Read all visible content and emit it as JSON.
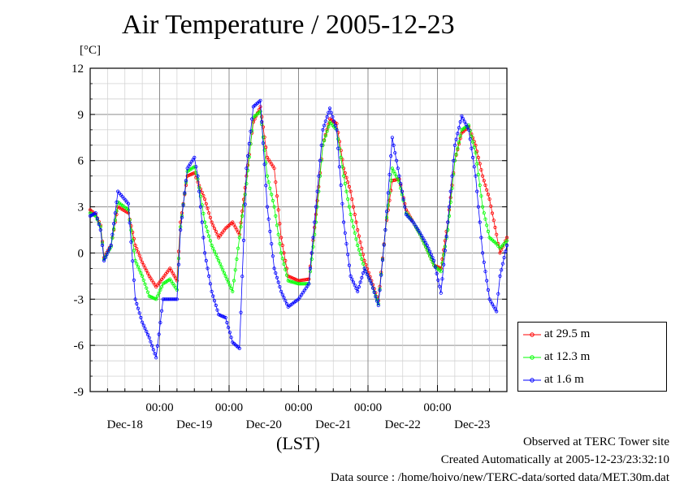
{
  "title": "Air Temperature / 2005-12-23",
  "unit_label": "[°C]",
  "time_zone_label": "(LST)",
  "footer": {
    "site": "Observed at TERC Tower site",
    "created": "Created Automatically at 2005-12-23/23:32:10",
    "source": "Data source : /home/hoivo/new/TERC-data/sorted  data/MET.30m.dat"
  },
  "chart_data": {
    "type": "line",
    "title": "Air Temperature / 2005-12-23",
    "ylabel": "[°C]",
    "xlabel": "(LST)",
    "ylim": [
      -9,
      12
    ],
    "xlim": [
      0,
      6
    ],
    "yticks": [
      12,
      9,
      6,
      3,
      0,
      -3,
      -6,
      -9
    ],
    "x_day_labels": [
      "Dec-18",
      "Dec-19",
      "Dec-20",
      "Dec-21",
      "Dec-22",
      "Dec-23"
    ],
    "x_time_labels": [
      "00:00",
      "00:00",
      "00:00",
      "00:00",
      "00:00"
    ],
    "x_time_positions": [
      1,
      2,
      3,
      4,
      5
    ],
    "grid": true,
    "legend_position": "right",
    "series": [
      {
        "name": "at 29.5 m",
        "color": "#ff0000",
        "x": [
          0,
          0.08,
          0.15,
          0.2,
          0.3,
          0.4,
          0.55,
          0.65,
          0.75,
          0.85,
          0.95,
          1.05,
          1.15,
          1.25,
          1.3,
          1.4,
          1.5,
          1.55,
          1.65,
          1.75,
          1.85,
          1.95,
          2.05,
          2.15,
          2.25,
          2.35,
          2.45,
          2.55,
          2.65,
          2.75,
          2.85,
          3.0,
          3.15,
          3.25,
          3.35,
          3.45,
          3.55,
          3.65,
          3.75,
          3.85,
          3.95,
          4.05,
          4.15,
          4.25,
          4.35,
          4.45,
          4.55,
          4.65,
          4.75,
          4.85,
          4.95,
          5.05,
          5.15,
          5.25,
          5.35,
          5.45,
          5.55,
          5.65,
          5.75,
          5.85,
          5.9,
          6.0
        ],
        "y": [
          2.8,
          2.5,
          1.8,
          -0.3,
          0.5,
          3.0,
          2.6,
          0.5,
          -0.6,
          -1.5,
          -2.2,
          -1.6,
          -1.0,
          -1.8,
          2.0,
          5.0,
          5.2,
          4.6,
          3.5,
          2.0,
          1.0,
          1.6,
          2.0,
          1.2,
          5.0,
          8.5,
          9.5,
          6.2,
          5.5,
          1.0,
          -1.5,
          -1.8,
          -1.7,
          2.5,
          7.0,
          8.7,
          8.4,
          5.5,
          4.0,
          1.5,
          -0.5,
          -1.8,
          -3.1,
          1.5,
          4.7,
          4.8,
          2.8,
          2.0,
          1.2,
          0.2,
          -0.8,
          -1.0,
          2.0,
          6.0,
          7.8,
          8.2,
          7.0,
          5.0,
          3.5,
          1.2,
          0.0,
          1.0
        ]
      },
      {
        "name": "at 12.3 m",
        "color": "#00ff00",
        "x": [
          0,
          0.08,
          0.15,
          0.2,
          0.3,
          0.4,
          0.55,
          0.65,
          0.75,
          0.85,
          0.95,
          1.05,
          1.15,
          1.25,
          1.3,
          1.4,
          1.5,
          1.55,
          1.65,
          1.75,
          1.85,
          1.95,
          2.05,
          2.15,
          2.25,
          2.35,
          2.45,
          2.55,
          2.65,
          2.75,
          2.85,
          3.0,
          3.15,
          3.25,
          3.35,
          3.45,
          3.55,
          3.65,
          3.75,
          3.85,
          3.95,
          4.05,
          4.15,
          4.25,
          4.35,
          4.45,
          4.55,
          4.65,
          4.75,
          4.85,
          4.95,
          5.05,
          5.15,
          5.25,
          5.35,
          5.45,
          5.55,
          5.65,
          5.75,
          5.85,
          5.9,
          6.0
        ],
        "y": [
          2.6,
          2.4,
          1.7,
          -0.4,
          0.4,
          3.3,
          2.8,
          -0.5,
          -1.5,
          -2.8,
          -3.0,
          -2.0,
          -1.7,
          -2.4,
          1.7,
          5.3,
          5.6,
          4.8,
          2.0,
          0.5,
          -0.5,
          -1.5,
          -2.5,
          1.0,
          4.5,
          8.8,
          9.2,
          5.0,
          3.0,
          0.0,
          -1.8,
          -2.0,
          -2.0,
          2.0,
          7.0,
          8.5,
          8.0,
          5.0,
          2.5,
          0.5,
          -1.0,
          -2.0,
          -3.3,
          1.5,
          5.5,
          4.6,
          2.6,
          2.0,
          1.2,
          0.2,
          -0.8,
          -1.2,
          1.5,
          6.0,
          8.0,
          8.3,
          6.5,
          3.0,
          1.0,
          0.6,
          0.3,
          0.8
        ]
      },
      {
        "name": "at 1.6 m",
        "color": "#0000ff",
        "x": [
          0,
          0.08,
          0.15,
          0.2,
          0.3,
          0.4,
          0.55,
          0.65,
          0.75,
          0.85,
          0.95,
          1.05,
          1.15,
          1.25,
          1.3,
          1.4,
          1.5,
          1.55,
          1.65,
          1.75,
          1.85,
          1.95,
          2.05,
          2.15,
          2.25,
          2.35,
          2.45,
          2.55,
          2.65,
          2.75,
          2.85,
          3.0,
          3.15,
          3.25,
          3.35,
          3.45,
          3.55,
          3.65,
          3.75,
          3.85,
          3.95,
          4.05,
          4.15,
          4.25,
          4.35,
          4.45,
          4.55,
          4.65,
          4.75,
          4.85,
          4.95,
          5.05,
          5.15,
          5.25,
          5.35,
          5.45,
          5.55,
          5.65,
          5.75,
          5.85,
          5.9,
          6.0
        ],
        "y": [
          2.4,
          2.6,
          1.5,
          -0.5,
          0.5,
          4.0,
          3.2,
          -3.0,
          -4.5,
          -5.5,
          -6.8,
          -3.0,
          -3.0,
          -3.0,
          1.5,
          5.5,
          6.2,
          5.0,
          0.0,
          -2.5,
          -4.0,
          -4.2,
          -5.8,
          -6.2,
          5.5,
          9.5,
          9.9,
          3.0,
          -1.0,
          -2.5,
          -3.5,
          -3.0,
          -2.0,
          3.0,
          8.0,
          9.4,
          8.0,
          2.0,
          -1.5,
          -2.5,
          -1.0,
          -2.0,
          -3.4,
          1.5,
          7.5,
          5.0,
          2.5,
          2.0,
          1.3,
          0.5,
          -0.5,
          -2.6,
          2.0,
          7.0,
          8.9,
          8.0,
          5.0,
          0.0,
          -3.0,
          -3.8,
          -1.5,
          0.5
        ]
      }
    ]
  }
}
